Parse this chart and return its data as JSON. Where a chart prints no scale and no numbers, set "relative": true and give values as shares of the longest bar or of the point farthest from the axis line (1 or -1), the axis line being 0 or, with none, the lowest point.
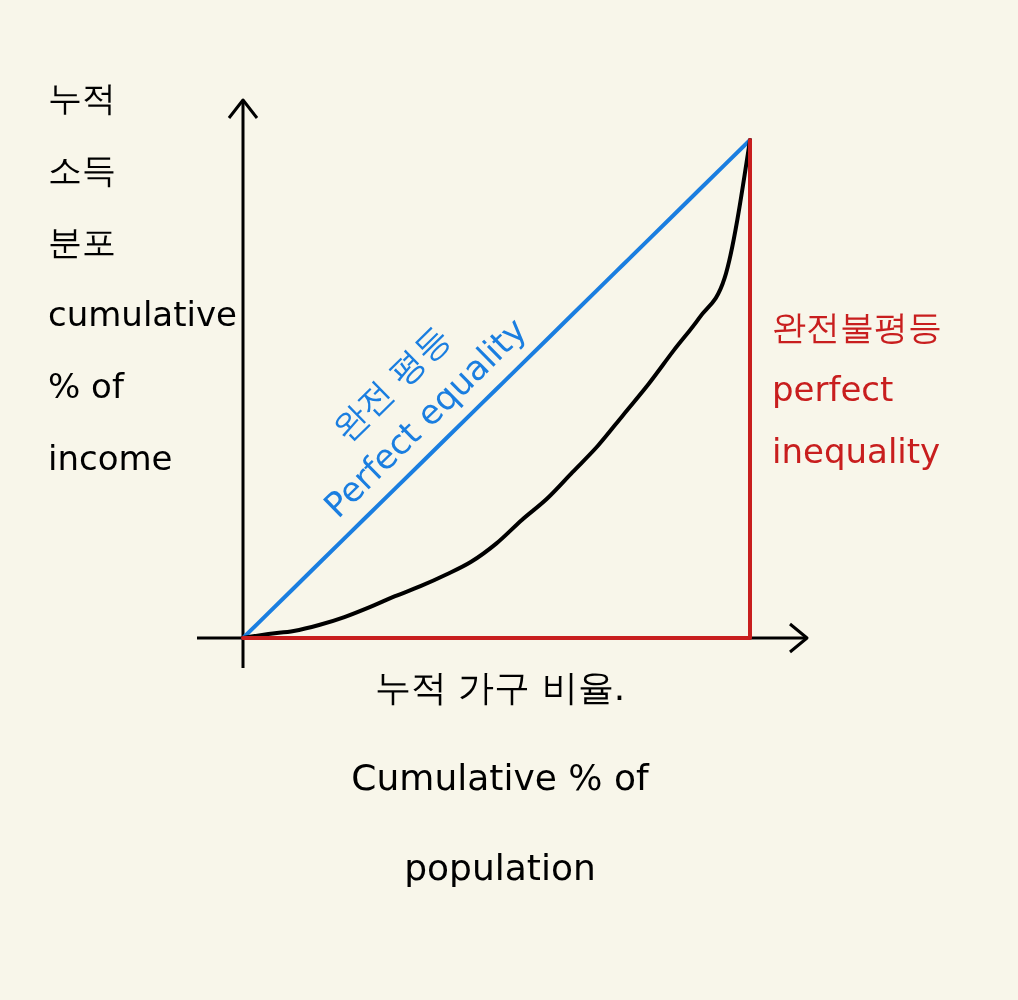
{
  "chart_data": {
    "type": "line",
    "relative": true,
    "xlabel": "누적 가구 비율.\nCumulative % of\npopulation",
    "ylabel": "누적\n소득\n분포\ncumulative\n% of\nincome",
    "categories": [
      null,
      null,
      null,
      null,
      null,
      null,
      null,
      null,
      null,
      null,
      null,
      null,
      null,
      null,
      null,
      null,
      null,
      null,
      null,
      null,
      null
    ],
    "series": [
      {
        "name": "완전 평등\nPerfect equality",
        "type": "line",
        "color": "#1a7ee0",
        "values": [
          0,
          0.05,
          0.1,
          0.15,
          0.2,
          0.25,
          0.3,
          0.35,
          0.4,
          0.45,
          0.5,
          0.55,
          0.6,
          0.65,
          0.7,
          0.75,
          0.8,
          0.85,
          0.9,
          0.95,
          1
        ]
      },
      {
        "type": "line",
        "color": "#000000",
        "values": [
          0,
          0.008,
          0.014,
          0.026,
          0.042,
          0.062,
          0.084,
          0.104,
          0.127,
          0.153,
          0.19,
          0.237,
          0.28,
          0.333,
          0.386,
          0.448,
          0.51,
          0.578,
          0.643,
          0.723,
          1
        ]
      },
      {
        "name": "완전불평등\nperfect\ninequality",
        "type": "step",
        "color": "#c81e1e",
        "values": [
          0,
          0,
          0,
          0,
          0,
          0,
          0,
          0,
          0,
          0,
          0,
          0,
          0,
          0,
          0,
          0,
          0,
          0,
          0,
          0,
          1
        ]
      }
    ]
  }
}
